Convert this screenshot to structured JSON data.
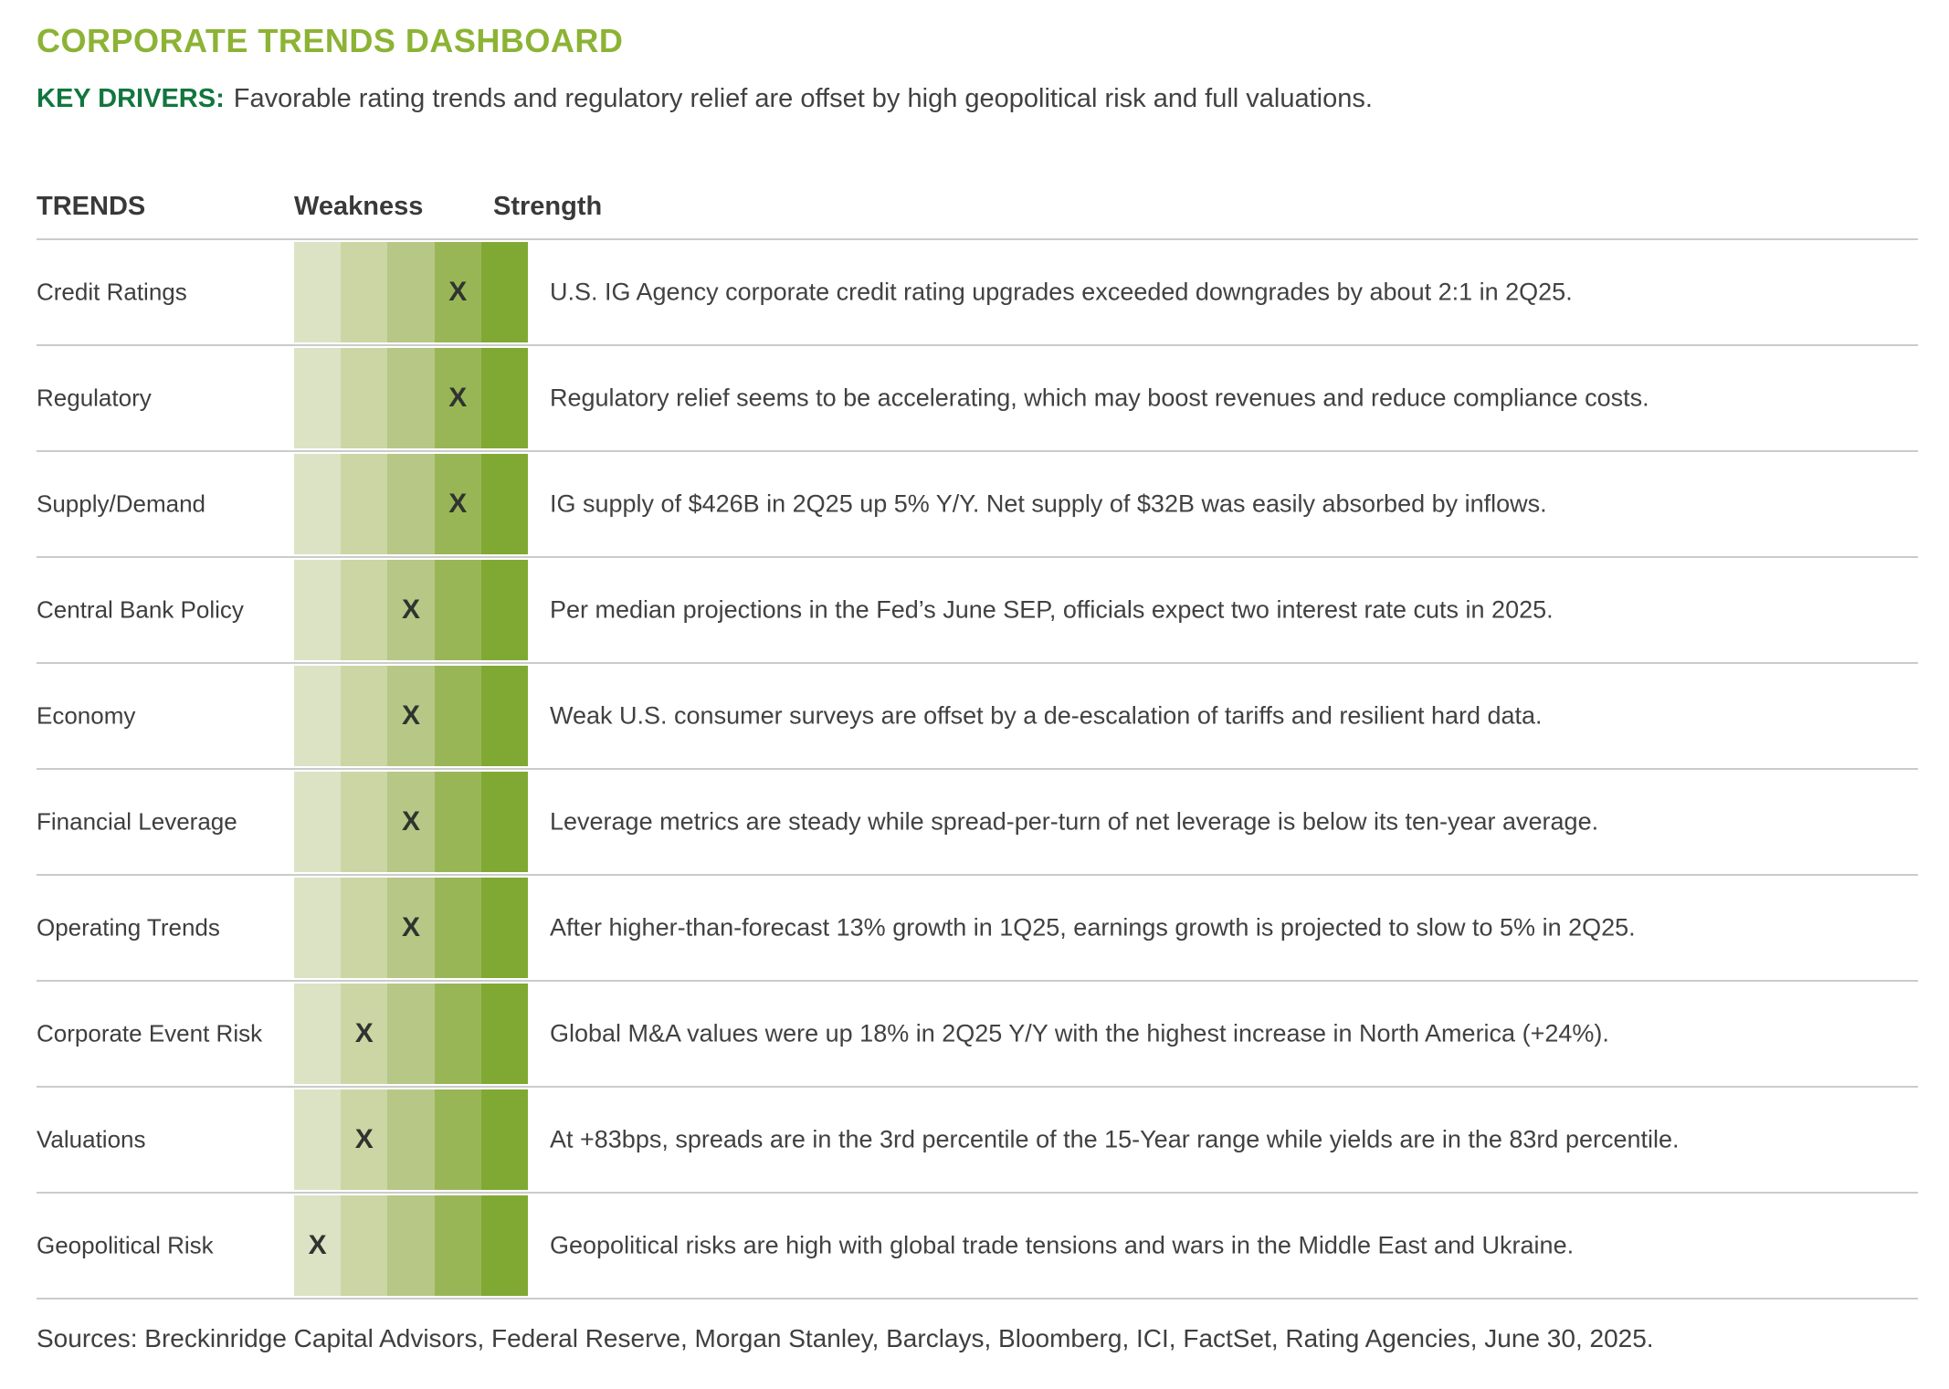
{
  "chart_data": {
    "type": "table",
    "title": "CORPORATE TRENDS DASHBOARD",
    "key_drivers_label": "KEY DRIVERS:",
    "key_drivers_text": "Favorable rating trends and regulatory relief are offset by high geopolitical risk and full valuations.",
    "header": {
      "trends": "TRENDS",
      "weakness": "Weakness",
      "strength": "Strength"
    },
    "scale": {
      "levels": 5,
      "marker": "X",
      "weak_label": "Weakness",
      "strong_label": "Strength",
      "colors": [
        "#DCE3C4",
        "#CBD6A4",
        "#B6C786",
        "#99B657",
        "#80A933"
      ]
    },
    "rows": [
      {
        "label": "Credit Ratings",
        "rating": 4,
        "note": "U.S. IG Agency corporate credit rating upgrades exceeded downgrades by about 2:1 in 2Q25."
      },
      {
        "label": "Regulatory",
        "rating": 4,
        "note": "Regulatory relief seems to be accelerating, which may boost revenues and reduce compliance costs."
      },
      {
        "label": "Supply/Demand",
        "rating": 4,
        "note": "IG supply of $426B in 2Q25 up 5% Y/Y. Net supply of $32B was easily absorbed by inflows."
      },
      {
        "label": "Central Bank Policy",
        "rating": 3,
        "note": "Per median projections in the Fed’s June SEP, officials expect two interest rate cuts in 2025."
      },
      {
        "label": "Economy",
        "rating": 3,
        "note": "Weak U.S. consumer surveys are offset by a de-escalation of tariffs and resilient hard data."
      },
      {
        "label": "Financial Leverage",
        "rating": 3,
        "note": "Leverage metrics are steady while spread-per-turn of net leverage is below its ten-year average."
      },
      {
        "label": "Operating Trends",
        "rating": 3,
        "note": "After higher-than-forecast 13% growth in 1Q25, earnings growth is projected to slow to 5% in 2Q25."
      },
      {
        "label": "Corporate Event Risk",
        "rating": 2,
        "note": "Global M&A values were up 18% in 2Q25 Y/Y with the highest increase in North America (+24%)."
      },
      {
        "label": "Valuations",
        "rating": 2,
        "note": "At +83bps, spreads are in the 3rd percentile of the 15-Year range while yields are in the 83rd percentile."
      },
      {
        "label": "Geopolitical Risk",
        "rating": 1,
        "note": "Geopolitical risks are high with global trade tensions and wars in the Middle East and Ukraine."
      }
    ],
    "sources": "Sources: Breckinridge Capital Advisors, Federal Reserve, Morgan Stanley, Barclays, Bloomberg, ICI, FactSet, Rating Agencies, June 30, 2025."
  },
  "colors": {
    "title_green": "#8CB334",
    "key_drivers_green": "#11763E",
    "body_text": "#414141",
    "divider_gray": "#CBCBCB",
    "x_marker": "#2F3430"
  }
}
